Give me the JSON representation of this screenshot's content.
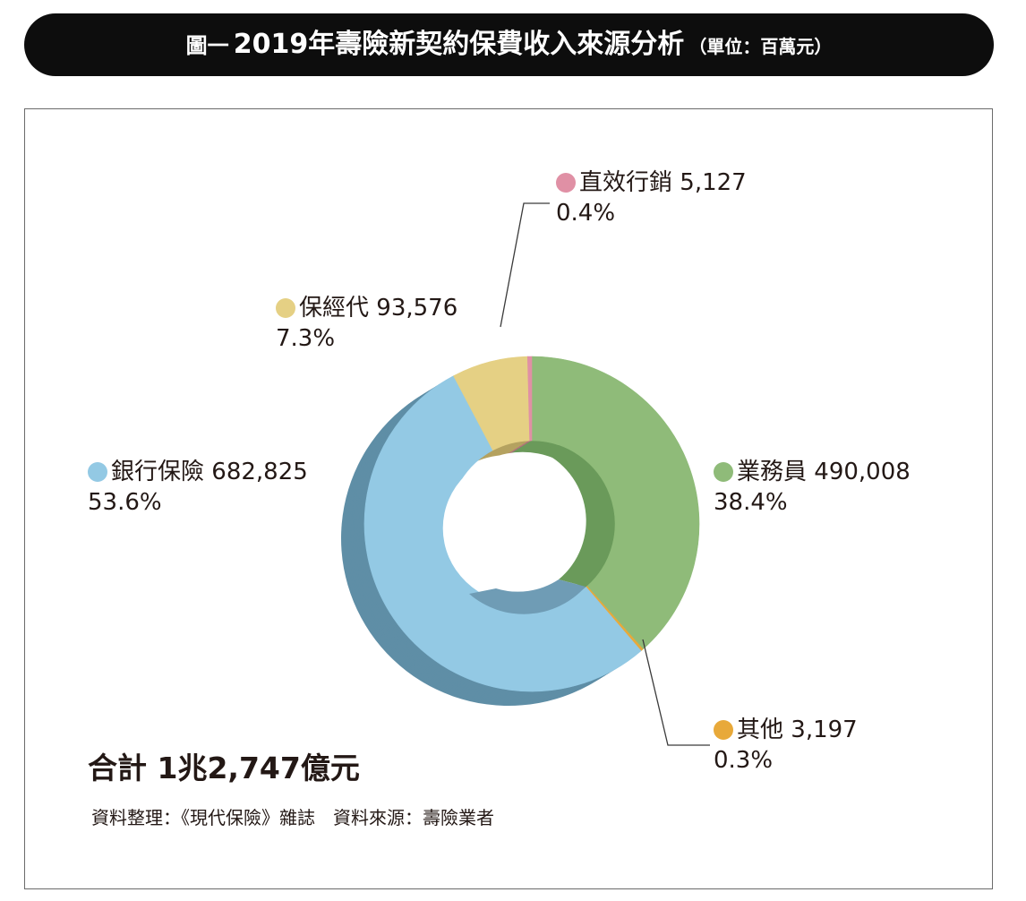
{
  "header": {
    "prefix": "圖一",
    "title": "2019年壽險新契約保費收入來源分析",
    "unit": "（單位：百萬元）"
  },
  "chart_data": {
    "type": "pie",
    "variant": "3d-donut",
    "slices": [
      {
        "key": "sales",
        "name": "業務員",
        "value": 490008,
        "value_label": "490,008",
        "percent": 38.4,
        "percent_label": "38.4%",
        "color": "#8fbb79",
        "side_color": "#6a9a5a"
      },
      {
        "key": "other",
        "name": "其他",
        "value": 3197,
        "value_label": "3,197",
        "percent": 0.3,
        "percent_label": "0.3%",
        "color": "#e8a93a",
        "side_color": "#c08a2a"
      },
      {
        "key": "bank",
        "name": "銀行保險",
        "value": 682825,
        "value_label": "682,825",
        "percent": 53.6,
        "percent_label": "53.6%",
        "color": "#93c9e4",
        "side_color": "#5f8ea6"
      },
      {
        "key": "broker",
        "name": "保經代",
        "value": 93576,
        "value_label": "93,576",
        "percent": 7.3,
        "percent_label": "7.3%",
        "color": "#e5d084",
        "side_color": "#b5a260"
      },
      {
        "key": "direct",
        "name": "直效行銷",
        "value": 5127,
        "value_label": "5,127",
        "percent": 0.4,
        "percent_label": "0.4%",
        "color": "#e090a5",
        "side_color": "#b56c80"
      }
    ]
  },
  "labels": {
    "sales": {
      "name": "業務員",
      "value": "490,008",
      "percent": "38.4%"
    },
    "other": {
      "name": "其他",
      "value": "3,197",
      "percent": "0.3%"
    },
    "bank": {
      "name": "銀行保險",
      "value": "682,825",
      "percent": "53.6%"
    },
    "broker": {
      "name": "保經代",
      "value": "93,576",
      "percent": "7.3%"
    },
    "direct": {
      "name": "直效行銷",
      "value": "5,127",
      "percent": "0.4%"
    }
  },
  "total": "合計 1兆2,747億元",
  "source": "資料整理：《現代保險》雜誌　資料來源：壽險業者"
}
